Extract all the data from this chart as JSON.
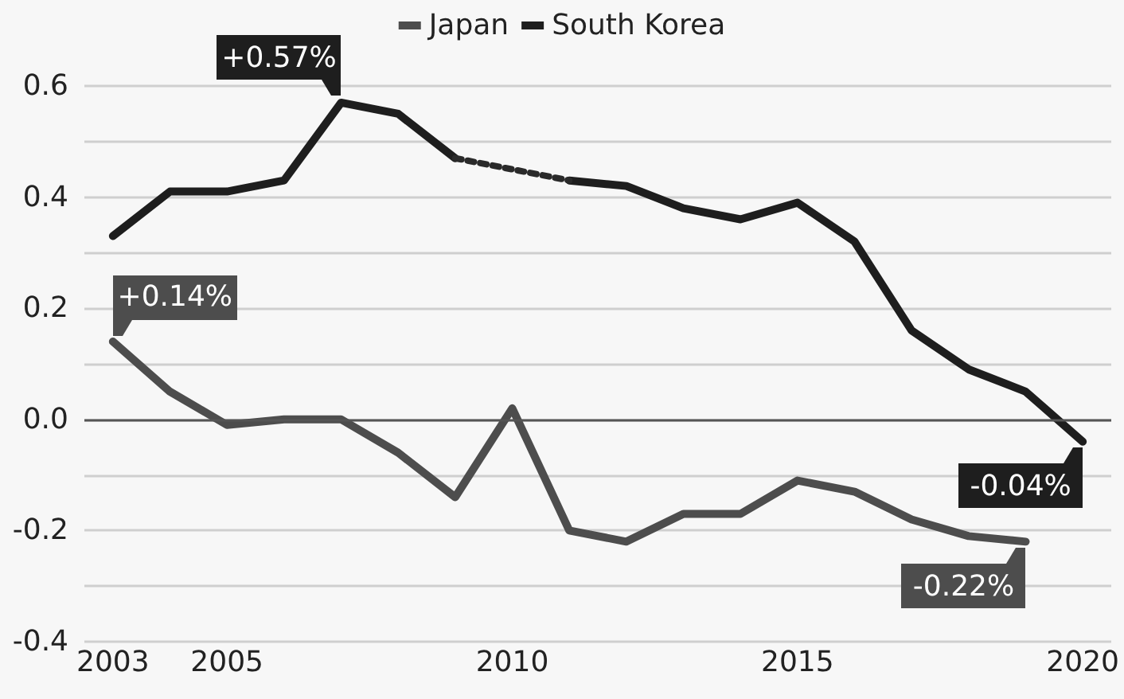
{
  "chart_data": {
    "type": "line",
    "x": [
      2003,
      2004,
      2005,
      2006,
      2007,
      2008,
      2009,
      2010,
      2011,
      2012,
      2013,
      2014,
      2015,
      2016,
      2017,
      2018,
      2019,
      2020
    ],
    "series": [
      {
        "name": "Japan",
        "color": "#4d4d4d",
        "values": [
          0.14,
          0.05,
          -0.01,
          0,
          0,
          -0.06,
          -0.14,
          0.02,
          -0.2,
          -0.22,
          -0.17,
          -0.17,
          -0.11,
          -0.13,
          -0.18,
          -0.21,
          -0.22,
          null
        ]
      },
      {
        "name": "South Korea",
        "color": "#1e1e1e",
        "values": [
          0.33,
          0.41,
          0.41,
          0.43,
          0.57,
          0.55,
          0.47,
          null,
          0.43,
          0.42,
          0.38,
          0.36,
          0.39,
          0.32,
          0.16,
          0.09,
          0.05,
          -0.04
        ]
      },
      {
        "color": "#2a2a2a",
        "line_style": "dotted",
        "x": [
          2009,
          2011
        ],
        "values": [
          0.47,
          0.43
        ]
      }
    ],
    "xlim": [
      2002.5,
      2020.5
    ],
    "xticks": [
      2003,
      2005,
      2010,
      2015,
      2020
    ],
    "ylim": [
      -0.4,
      0.6
    ],
    "yticks": [
      -0.4,
      {
        "value": -0.3,
        "label": null
      },
      -0.2,
      {
        "value": -0.1,
        "label": null
      },
      {
        "value": 0,
        "label": "0.0"
      },
      {
        "value": 0.1,
        "label": null
      },
      0.2,
      {
        "value": 0.3,
        "label": null
      },
      0.4,
      {
        "value": 0.5,
        "label": null
      },
      0.6
    ],
    "ref_lines": [
      {
        "axis": "y",
        "value": 0,
        "color": "#555555"
      }
    ],
    "annotations": [
      {
        "text": "+0.57%",
        "x": 2007,
        "y": 0.57
      },
      {
        "text": "+0.14%",
        "x": 2003,
        "y": 0.14
      },
      {
        "text": "-0.04%",
        "x": 2020,
        "y": -0.04
      },
      {
        "text": "-0.22%",
        "x": 2019,
        "y": -0.22
      }
    ],
    "grid": "y",
    "legend": "top",
    "marker": "none",
    "line_style": "solid"
  }
}
